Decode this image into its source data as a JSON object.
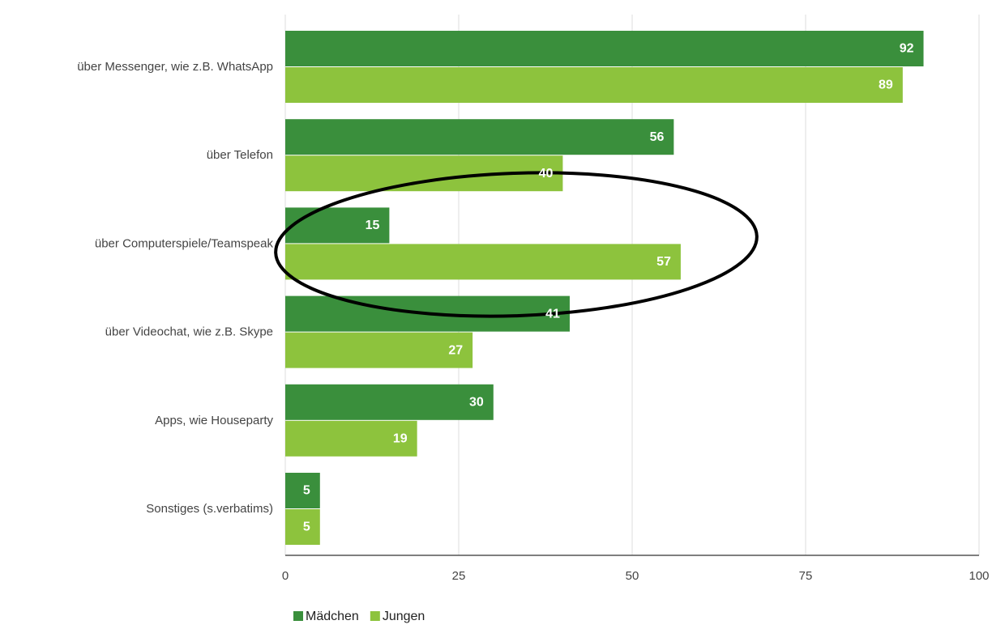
{
  "chart_data": {
    "type": "bar",
    "orientation": "horizontal",
    "categories": [
      "über Messenger, wie z.B. WhatsApp",
      "über Telefon",
      "über Computerspiele/Teamspeak",
      "über Videochat, wie z.B. Skype",
      "Apps, wie Houseparty",
      "Sonstiges (s.verbatims)"
    ],
    "series": [
      {
        "name": "Mädchen",
        "color": "#3a8f3c",
        "values": [
          92,
          56,
          15,
          41,
          30,
          5
        ]
      },
      {
        "name": "Jungen",
        "color": "#8dc33d",
        "values": [
          89,
          40,
          57,
          27,
          19,
          5
        ]
      }
    ],
    "xlim": [
      0,
      100
    ],
    "xticks": [
      0,
      25,
      50,
      75,
      100
    ],
    "grid": true,
    "legend": "bottom-left"
  }
}
